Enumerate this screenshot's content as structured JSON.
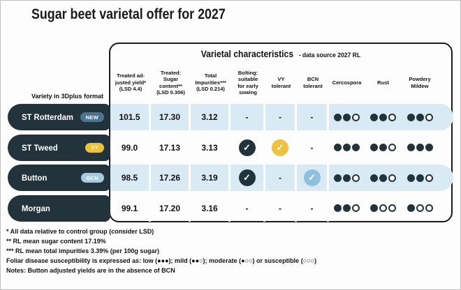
{
  "page": {
    "title": "Sugar beet varietal offer for 2027"
  },
  "chart_data": {
    "type": "table",
    "title": "Varietal characteristics",
    "subtitle": "- data source 2027 RL",
    "variety_format_label": "Variety in 3Dplus format",
    "columns": [
      "Treated ad-\njusted yield*\n(LSD 4.4)",
      "Treated:\nSugar\ncontent**\n(LSD 0.306)",
      "Total\nImpurities***\n(LSD 0.214)",
      "Bolting:\nsuitable\nfor early\nsowing",
      "VY\ntolerant",
      "BCN\ntolerant",
      "Cercospora",
      "Rust",
      "Powdery\nMildew"
    ],
    "rating_scale_max": 3,
    "rows": [
      {
        "name": "ST Rotterdam",
        "badge": {
          "label": "NEW",
          "type": "new"
        },
        "treated_adjusted_yield": "101.5",
        "sugar_content": "17.30",
        "total_impurities": "3.12",
        "bolting": "-",
        "vy_tolerant": "-",
        "bcn_tolerant": "-",
        "cercospora": 2,
        "rust": 2,
        "powdery_mildew": 2,
        "shaded": true
      },
      {
        "name": "ST Tweed",
        "badge": {
          "label": "VY",
          "type": "vy"
        },
        "treated_adjusted_yield": "99.0",
        "sugar_content": "17.13",
        "total_impurities": "3.13",
        "bolting": "✓",
        "vy_tolerant": "✓",
        "bcn_tolerant": "-",
        "cercospora": 3,
        "rust": 2,
        "powdery_mildew": 3,
        "shaded": false
      },
      {
        "name": "Button",
        "badge": {
          "label": "BCN",
          "type": "bcn"
        },
        "treated_adjusted_yield": "98.5",
        "sugar_content": "17.26",
        "total_impurities": "3.19",
        "bolting": "✓",
        "vy_tolerant": "-",
        "bcn_tolerant": "✓",
        "cercospora": 2,
        "rust": 2,
        "powdery_mildew": 2,
        "shaded": true
      },
      {
        "name": "Morgan",
        "badge": null,
        "treated_adjusted_yield": "99.1",
        "sugar_content": "17.20",
        "total_impurities": "3.16",
        "bolting": "-",
        "vy_tolerant": "-",
        "bcn_tolerant": "-",
        "cercospora": 2,
        "rust": 1,
        "powdery_mildew": 1,
        "shaded": false
      }
    ],
    "colors": {
      "dark_navy": "#22333c",
      "row_shade": "#d9eaf4",
      "badge_new": "#4b7392",
      "badge_vy": "#ecc23e",
      "badge_bcn": "#a6cade",
      "check_dark": "#22333c",
      "check_vy": "#ecc23e",
      "check_bcn": "#8fc0de"
    }
  },
  "footnotes": [
    "* All data relative to control group (consider LSD)",
    "** RL mean sugar content 17.19%",
    "*** RL mean total impurities 3.39% (per 100g sugar)",
    "Foliar disease susceptibility is expressed as: low (●●●); mild (●●○); moderate (●○○) or susceptible (○○○)",
    "Notes: Button adjusted yields are in the absence of BCN"
  ]
}
